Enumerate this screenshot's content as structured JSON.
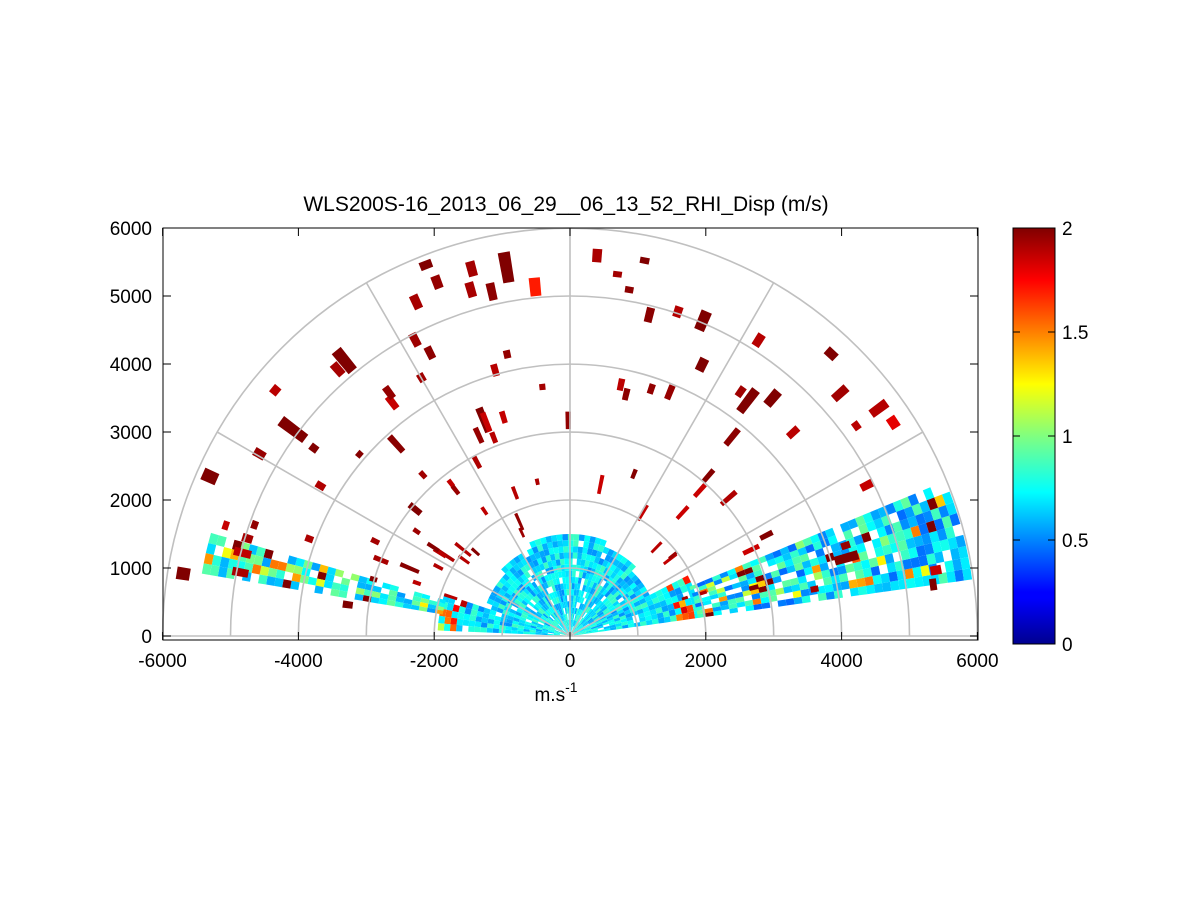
{
  "chart_data": {
    "type": "heatmap",
    "subtype": "polar RHI scan",
    "title": "WLS200S-16_2013_06_29__06_13_52_RHI_Disp (m/s)",
    "xlabel_base": "m.s",
    "xlabel_exp": "-1",
    "ylabel": "",
    "xlim": [
      -6000,
      6000
    ],
    "ylim": [
      0,
      6000
    ],
    "xticks": [
      "-6000",
      "-4000",
      "-2000",
      "0",
      "2000",
      "4000",
      "6000"
    ],
    "xtick_values": [
      -6000,
      -4000,
      -2000,
      0,
      2000,
      4000,
      6000
    ],
    "yticks": [
      "0",
      "1000",
      "2000",
      "3000",
      "4000",
      "5000",
      "6000"
    ],
    "ytick_values": [
      0,
      1000,
      2000,
      3000,
      4000,
      5000,
      6000
    ],
    "range_rings": [
      1000,
      2000,
      3000,
      4000,
      5000,
      6000
    ],
    "spoke_angles_deg": [
      0,
      30,
      60,
      90,
      120,
      150,
      180
    ],
    "colorbar": {
      "min": 0,
      "max": 2,
      "ticks": [
        "0",
        "0.5",
        "1",
        "1.5",
        "2"
      ],
      "tick_values": [
        0,
        0.5,
        1,
        1.5,
        2
      ],
      "colormap": "jet"
    },
    "colors": {
      "grid": "#c0c0c0",
      "axes": "#000000",
      "low": "#00008f",
      "high": "#800000"
    },
    "data_regions": [
      {
        "name": "near-field cone",
        "angle_range_deg": [
          8,
          175
        ],
        "range_m": [
          0,
          1900
        ],
        "value_mean": 0.7
      },
      {
        "name": "left low-elevation band",
        "angle_range_deg": [
          164,
          170
        ],
        "range_m": [
          1900,
          5500
        ],
        "value_mean": 0.8
      },
      {
        "name": "right low-elevation band",
        "angle_range_deg": [
          8,
          21
        ],
        "range_m": [
          1900,
          5950
        ],
        "value_mean": 0.7
      },
      {
        "name": "scattered high-dispersion returns",
        "angle_range_deg": [
          10,
          170
        ],
        "range_m": [
          1500,
          5600
        ],
        "value_mean": 2.0
      }
    ],
    "high_value_segments": [
      {
        "x": -5200,
        "y": 2300,
        "value": 2.0
      },
      {
        "x": -3900,
        "y": 2900,
        "value": 2.0
      },
      {
        "x": -3200,
        "y": 3900,
        "value": 2.0
      },
      {
        "x": -2200,
        "y": 1800,
        "value": 2.0
      },
      {
        "x": -2100,
        "y": 5400,
        "value": 2.0
      },
      {
        "x": -1200,
        "y": 3000,
        "value": 2.0
      },
      {
        "x": -900,
        "y": 5200,
        "value": 2.0
      },
      {
        "x": -500,
        "y": 5000,
        "value": 1.7
      },
      {
        "x": 1900,
        "y": 4500,
        "value": 2.0
      },
      {
        "x": 1900,
        "y": 3900,
        "value": 2.0
      },
      {
        "x": 2500,
        "y": 3300,
        "value": 2.0
      },
      {
        "x": 2900,
        "y": 3400,
        "value": 2.0
      },
      {
        "x": 3800,
        "y": 4100,
        "value": 2.0
      },
      {
        "x": 4700,
        "y": 3100,
        "value": 1.8
      },
      {
        "x": 3900,
        "y": 1100,
        "value": 2.0
      },
      {
        "x": 5300,
        "y": 750,
        "value": 2.0
      },
      {
        "x": -5600,
        "y": 900,
        "value": 2.0
      },
      {
        "x": -3200,
        "y": 450,
        "value": 2.0
      }
    ]
  }
}
